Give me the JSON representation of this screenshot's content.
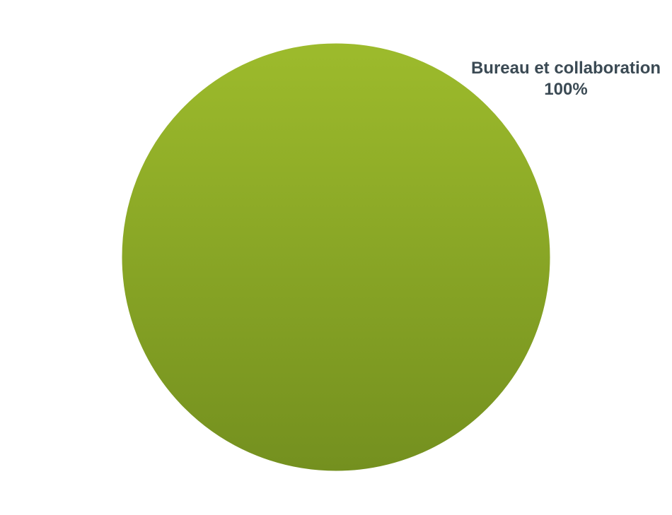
{
  "chart_data": {
    "type": "pie",
    "categories": [
      "Bureau et collaboration"
    ],
    "values": [
      100
    ],
    "data_labels": [
      "100%"
    ],
    "colors": {
      "slice_top": "#9dbb2c",
      "slice_bottom": "#74901f",
      "label_text": "#3b4a54",
      "slice_edge": "#ffffff"
    }
  }
}
